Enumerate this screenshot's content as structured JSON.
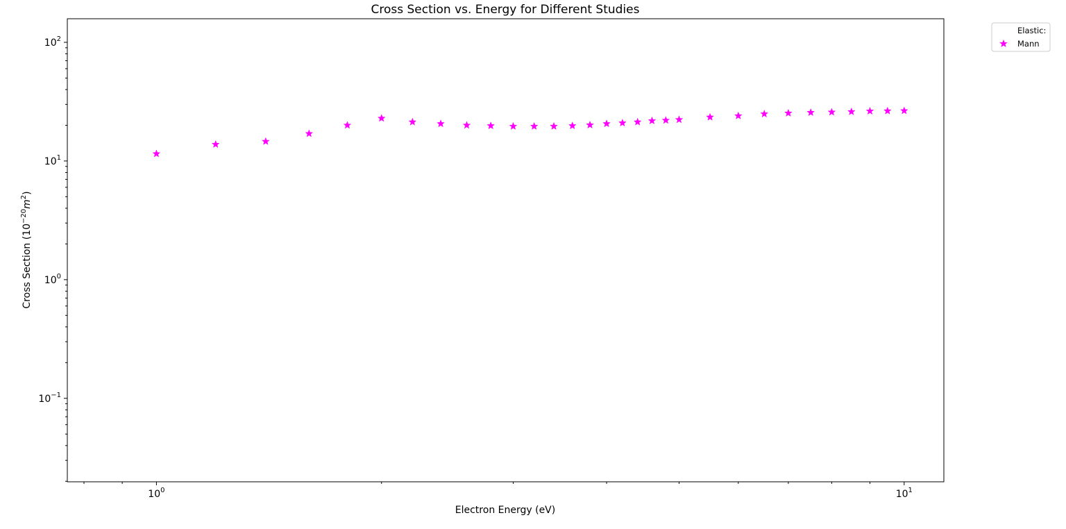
{
  "chart_data": {
    "type": "scatter",
    "title": "Cross Section vs. Energy for Different Studies",
    "xlabel": "Electron Energy (eV)",
    "ylabel_main": "Cross Section (10",
    "ylabel_exp": "−20",
    "ylabel_unit": "m",
    "ylabel_unit_exp": "2",
    "ylabel_close": ")",
    "xscale": "log",
    "yscale": "log",
    "xlim": [
      0.76,
      11.3
    ],
    "ylim": [
      0.0198,
      158
    ],
    "grid": false,
    "legend_position": "outside-top-right",
    "x_ticks": [
      {
        "base": "10",
        "exp": "0",
        "value": 1
      },
      {
        "base": "10",
        "exp": "1",
        "value": 10
      }
    ],
    "y_ticks": [
      {
        "base": "10",
        "exp": "−1",
        "value": 0.1
      },
      {
        "base": "10",
        "exp": "0",
        "value": 1
      },
      {
        "base": "10",
        "exp": "1",
        "value": 10
      },
      {
        "base": "10",
        "exp": "2",
        "value": 100
      }
    ],
    "legend": {
      "header": "Elastic:",
      "entries": [
        {
          "name": "Mann",
          "color": "#ff00ff",
          "marker": "star"
        }
      ]
    },
    "series": [
      {
        "name": "Mann",
        "color": "#ff00ff",
        "marker": "star",
        "x": [
          1.0,
          1.2,
          1.4,
          1.6,
          1.8,
          2.0,
          2.2,
          2.4,
          2.6,
          2.8,
          3.0,
          3.2,
          3.4,
          3.6,
          3.8,
          4.0,
          4.2,
          4.4,
          4.6,
          4.8,
          5.0,
          5.5,
          6.0,
          6.5,
          7.0,
          7.5,
          8.0,
          8.5,
          9.0,
          9.5,
          10.0
        ],
        "y": [
          11.5,
          13.8,
          14.6,
          17.0,
          20.0,
          22.9,
          21.3,
          20.6,
          20.0,
          19.8,
          19.6,
          19.6,
          19.6,
          19.8,
          20.1,
          20.6,
          20.9,
          21.3,
          21.8,
          22.0,
          22.3,
          23.4,
          24.0,
          24.9,
          25.3,
          25.6,
          25.8,
          26.0,
          26.3,
          26.4,
          26.5
        ]
      }
    ]
  }
}
